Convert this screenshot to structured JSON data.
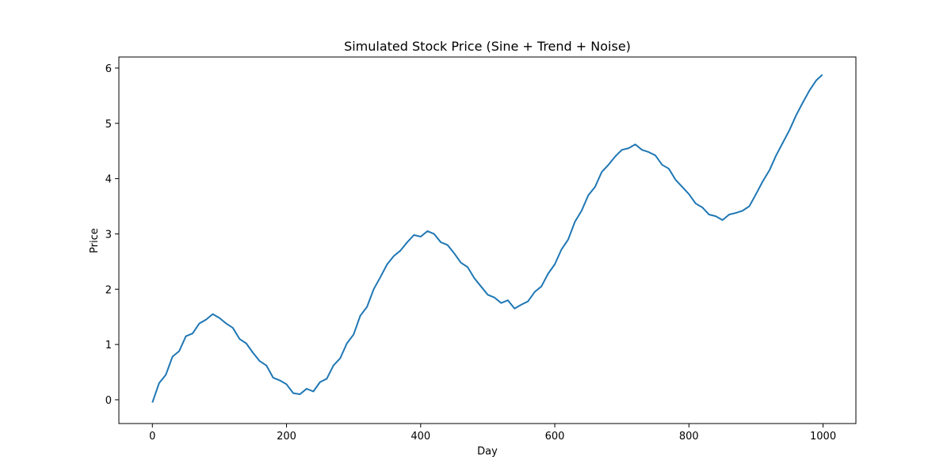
{
  "chart_data": {
    "type": "line",
    "title": "Simulated Stock Price (Sine + Trend + Noise)",
    "x_label": "Day",
    "y_label": "Price",
    "x": [
      0,
      10,
      20,
      30,
      40,
      50,
      60,
      70,
      80,
      90,
      100,
      110,
      120,
      130,
      140,
      150,
      160,
      170,
      180,
      190,
      200,
      210,
      220,
      230,
      240,
      250,
      260,
      270,
      280,
      290,
      300,
      310,
      320,
      330,
      340,
      350,
      360,
      370,
      380,
      390,
      400,
      410,
      420,
      430,
      440,
      450,
      460,
      470,
      480,
      490,
      500,
      510,
      520,
      530,
      540,
      550,
      560,
      570,
      580,
      590,
      600,
      610,
      620,
      630,
      640,
      650,
      660,
      670,
      680,
      690,
      700,
      710,
      720,
      730,
      740,
      750,
      760,
      770,
      780,
      790,
      800,
      810,
      820,
      830,
      840,
      850,
      860,
      870,
      880,
      890,
      900,
      910,
      920,
      930,
      940,
      950,
      960,
      970,
      980,
      990,
      999
    ],
    "series": [
      {
        "name": "Price",
        "color": "#1f77b4",
        "values": [
          -0.05,
          0.3,
          0.45,
          0.78,
          0.88,
          1.15,
          1.2,
          1.38,
          1.45,
          1.55,
          1.48,
          1.38,
          1.3,
          1.1,
          1.02,
          0.85,
          0.7,
          0.62,
          0.4,
          0.35,
          0.28,
          0.12,
          0.1,
          0.2,
          0.15,
          0.32,
          0.38,
          0.62,
          0.75,
          1.02,
          1.18,
          1.52,
          1.68,
          2.0,
          2.22,
          2.45,
          2.6,
          2.7,
          2.85,
          2.98,
          2.95,
          3.05,
          3.0,
          2.85,
          2.8,
          2.65,
          2.48,
          2.4,
          2.2,
          2.05,
          1.9,
          1.85,
          1.75,
          1.8,
          1.65,
          1.72,
          1.78,
          1.95,
          2.05,
          2.28,
          2.45,
          2.72,
          2.9,
          3.22,
          3.42,
          3.7,
          3.85,
          4.12,
          4.25,
          4.4,
          4.52,
          4.55,
          4.62,
          4.52,
          4.48,
          4.42,
          4.25,
          4.18,
          3.98,
          3.85,
          3.72,
          3.55,
          3.48,
          3.35,
          3.32,
          3.25,
          3.35,
          3.38,
          3.42,
          3.5,
          3.72,
          3.95,
          4.15,
          4.42,
          4.65,
          4.88,
          5.15,
          5.38,
          5.6,
          5.78,
          5.88
        ]
      }
    ],
    "xlim": [
      -49.95,
      1048.95
    ],
    "ylim": [
      -0.43,
      6.2
    ],
    "xticks": [
      0,
      200,
      400,
      600,
      800,
      1000
    ],
    "yticks": [
      0,
      1,
      2,
      3,
      4,
      5,
      6
    ]
  }
}
